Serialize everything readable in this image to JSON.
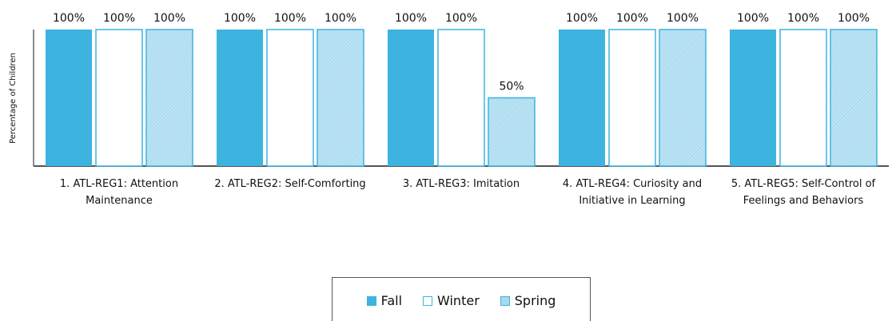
{
  "chart_data": {
    "type": "bar",
    "y_label": "Percentage of Children",
    "categories": [
      "1. ATL-REG1: Attention Maintenance",
      "2. ATL-REG2: Self-Comforting",
      "3. ATL-REG3: Imitation",
      "4. ATL-REG4: Curiosity and Initiative in Learning",
      "5. ATL-REG5: Self-Control of Feelings and Behaviors"
    ],
    "series": [
      {
        "name": "Fall",
        "color": "#3db3e0",
        "values": [
          100,
          100,
          100,
          100,
          100
        ],
        "value_labels": [
          "100%",
          "100%",
          "100%",
          "100%",
          "100%"
        ]
      },
      {
        "name": "Winter",
        "color": "#ffffff",
        "values": [
          100,
          100,
          100,
          100,
          100
        ],
        "value_labels": [
          "100%",
          "100%",
          "100%",
          "100%",
          "100%"
        ]
      },
      {
        "name": "Spring",
        "color": "#a6d9ef",
        "values": [
          100,
          100,
          50,
          100,
          100
        ],
        "value_labels": [
          "100%",
          "100%",
          "50%",
          "100%",
          "100%"
        ]
      }
    ],
    "ylim": [
      0,
      100
    ],
    "legend": "bottom"
  }
}
